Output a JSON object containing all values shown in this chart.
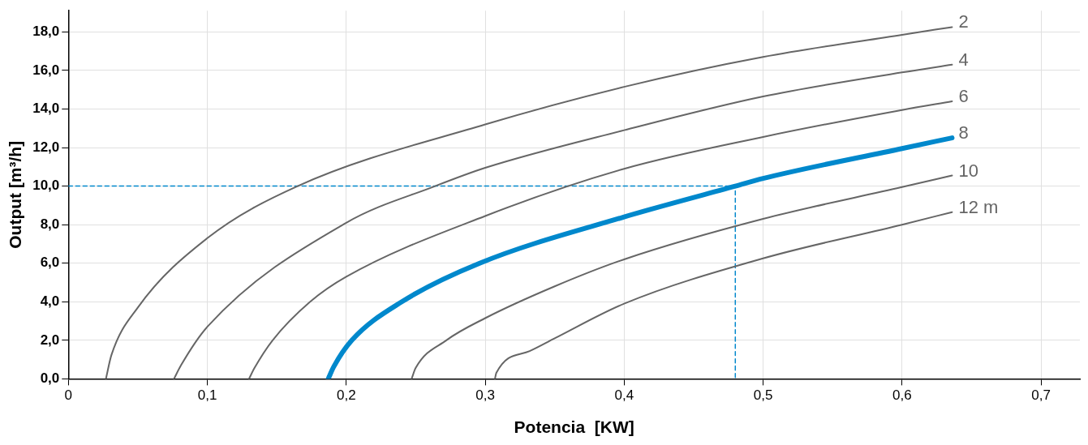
{
  "chart_data": {
    "type": "line",
    "xlabel": "Potencia  [KW]",
    "ylabel": "Output [m³/h]",
    "xlim": [
      0,
      0.728
    ],
    "ylim": [
      0,
      19.1
    ],
    "xticks": [
      0,
      {
        "value": 0.1,
        "label": "0,1"
      },
      {
        "value": 0.2,
        "label": "0,2"
      },
      {
        "value": 0.3,
        "label": "0,3"
      },
      {
        "value": 0.4,
        "label": "0,4"
      },
      {
        "value": 0.5,
        "label": "0,5"
      },
      {
        "value": 0.6,
        "label": "0,6"
      },
      {
        "value": 0.7,
        "label": "0,7"
      }
    ],
    "yticks": [
      {
        "value": 0,
        "label": "0,0"
      },
      {
        "value": 2,
        "label": "2,0"
      },
      {
        "value": 4,
        "label": "4,0"
      },
      {
        "value": 6,
        "label": "6,0"
      },
      {
        "value": 8,
        "label": "8,0"
      },
      {
        "value": 10,
        "label": "10,0"
      },
      {
        "value": 12,
        "label": "12,0"
      },
      {
        "value": 14,
        "label": "14,0"
      },
      {
        "value": 16,
        "label": "16,0"
      },
      {
        "value": 18,
        "label": "18,0"
      }
    ],
    "grid": true,
    "legend": false,
    "marker": "none",
    "line_style": "solid",
    "series": [
      {
        "name": "2",
        "color": "#666666",
        "x": [
          0.027,
          0.031,
          0.05,
          0.1,
          0.165,
          0.3,
          0.4,
          0.5,
          0.6,
          0.636
        ],
        "values": [
          0,
          1.24,
          3.7,
          7.3,
          10,
          13.2,
          15.15,
          16.7,
          17.85,
          18.25
        ]
      },
      {
        "name": "4",
        "color": "#666666",
        "x": [
          0.076,
          0.081,
          0.1,
          0.2,
          0.264,
          0.3,
          0.4,
          0.5,
          0.6,
          0.636
        ],
        "values": [
          0,
          0.7,
          2.7,
          8.1,
          10,
          10.95,
          12.9,
          14.65,
          15.9,
          16.3
        ]
      },
      {
        "name": "6",
        "color": "#666666",
        "x": [
          0.13,
          0.134,
          0.147,
          0.174,
          0.2,
          0.3,
          0.4,
          0.5,
          0.6,
          0.636
        ],
        "values": [
          0,
          0.57,
          2,
          4,
          5.3,
          8.45,
          10.9,
          12.55,
          13.95,
          14.4
        ]
      },
      {
        "name": "8",
        "color": "#0088cc",
        "x": [
          0.187,
          0.191,
          0.204,
          0.24,
          0.296,
          0.4,
          0.48,
          0.5,
          0.6,
          0.636
        ],
        "values": [
          0,
          0.63,
          2,
          4,
          6,
          8.4,
          10,
          10.4,
          11.95,
          12.5
        ]
      },
      {
        "name": "10",
        "color": "#666666",
        "x": [
          0.247,
          0.25,
          0.272,
          0.3,
          0.35,
          0.4,
          0.5,
          0.6,
          0.636
        ],
        "values": [
          0,
          0.57,
          2,
          3.15,
          4.8,
          6.2,
          8.3,
          9.95,
          10.55
        ]
      },
      {
        "name": "12 m",
        "color": "#666666",
        "x": [
          0.307,
          0.308,
          0.332,
          0.35,
          0.4,
          0.5,
          0.6,
          0.636
        ],
        "values": [
          0,
          0.31,
          1.44,
          2.1,
          3.9,
          6.25,
          8,
          8.65
        ]
      },
      {
        "color": "#0088cc",
        "line_style": "dashed",
        "x": [
          0,
          0.48,
          0.48
        ],
        "values": [
          10,
          10,
          0
        ]
      }
    ]
  }
}
